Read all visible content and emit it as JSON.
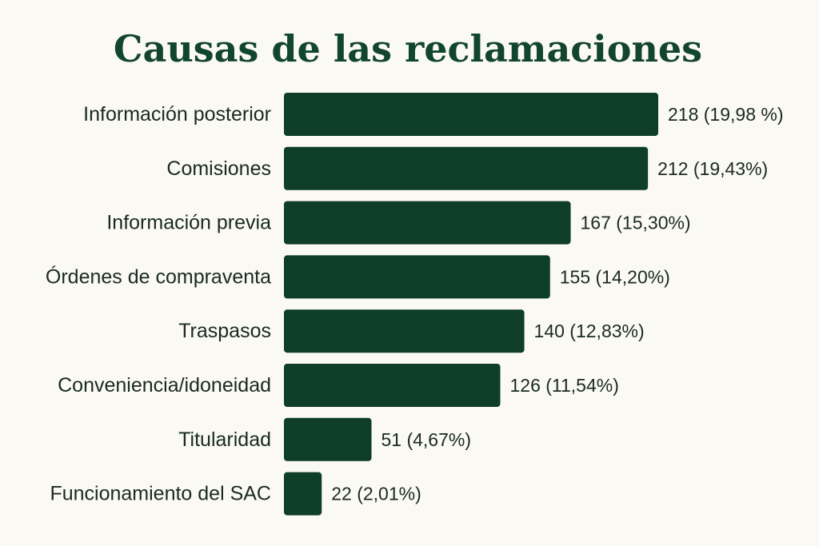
{
  "chart_data": {
    "type": "bar",
    "orientation": "horizontal",
    "title": "Causas de las reclamaciones",
    "xlabel": "",
    "ylabel": "",
    "grid": false,
    "categories": [
      "Información posterior",
      "Comisiones",
      "Información previa",
      "Órdenes de compraventa",
      "Traspasos",
      "Conveniencia/idoneidad",
      "Titularidad",
      "Funcionamiento del SAC"
    ],
    "values": [
      218,
      212,
      167,
      155,
      140,
      126,
      51,
      22
    ],
    "percentages": [
      19.98,
      19.43,
      15.3,
      14.2,
      12.83,
      11.54,
      4.67,
      2.01
    ],
    "value_labels": [
      "218 (19,98 %)",
      "212 (19,43%)",
      "167 (15,30%)",
      "155 (14,20%)",
      "140 (12,83%)",
      "126 (11,54%)",
      "51 (4,67%)",
      "22 (2,01%)"
    ],
    "colors": {
      "bar": "#0e3d28",
      "title": "#12452f",
      "background": "#fbf9f3"
    }
  }
}
